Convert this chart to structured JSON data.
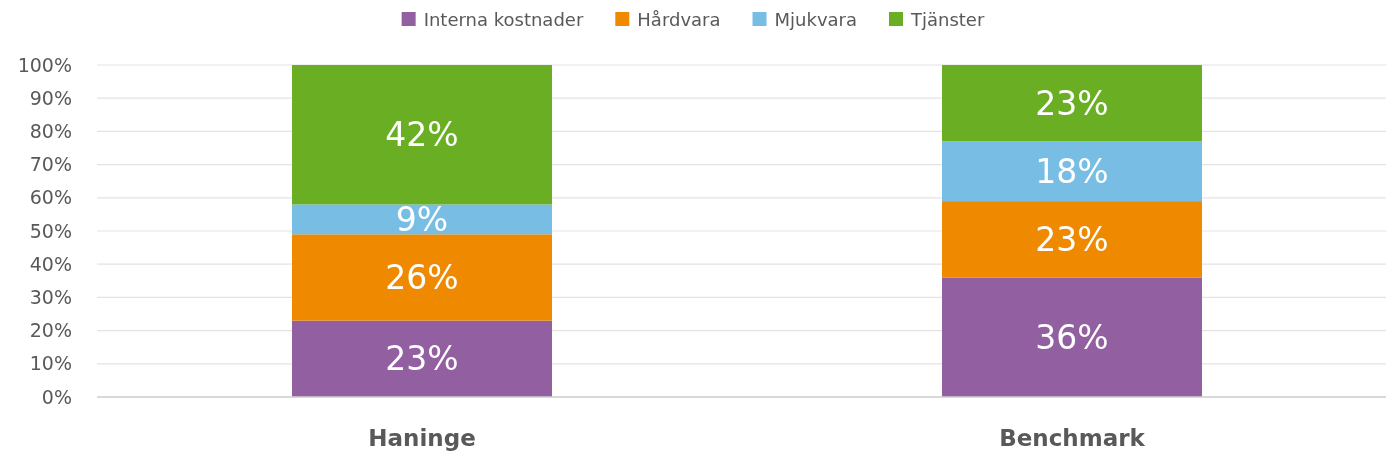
{
  "chart_data": {
    "type": "bar",
    "stacked": true,
    "categories": [
      "Haninge",
      "Benchmark"
    ],
    "series": [
      {
        "name": "Interna kostnader",
        "color": "#925fa0",
        "values": [
          23,
          36
        ],
        "value_labels": [
          "23%",
          "36%"
        ]
      },
      {
        "name": "Hårdvara",
        "color": "#ee8900",
        "values": [
          26,
          23
        ],
        "value_labels": [
          "26%",
          "23%"
        ]
      },
      {
        "name": "Mjukvara",
        "color": "#77bde4",
        "values": [
          9,
          18
        ],
        "value_labels": [
          "9%",
          "18%"
        ]
      },
      {
        "name": "Tjänster",
        "color": "#6aaf23",
        "values": [
          42,
          23
        ],
        "value_labels": [
          "42%",
          "23%"
        ]
      }
    ],
    "ylim": [
      0,
      100
    ],
    "yticks": [
      {
        "value": 0,
        "label": "0%"
      },
      {
        "value": 10,
        "label": "10%"
      },
      {
        "value": 20,
        "label": "20%"
      },
      {
        "value": 30,
        "label": "30%"
      },
      {
        "value": 40,
        "label": "40%"
      },
      {
        "value": 50,
        "label": "50%"
      },
      {
        "value": 60,
        "label": "60%"
      },
      {
        "value": 70,
        "label": "70%"
      },
      {
        "value": 80,
        "label": "80%"
      },
      {
        "value": 90,
        "label": "90%"
      },
      {
        "value": 100,
        "label": "100%"
      }
    ],
    "grid": "y",
    "legend": "top"
  }
}
